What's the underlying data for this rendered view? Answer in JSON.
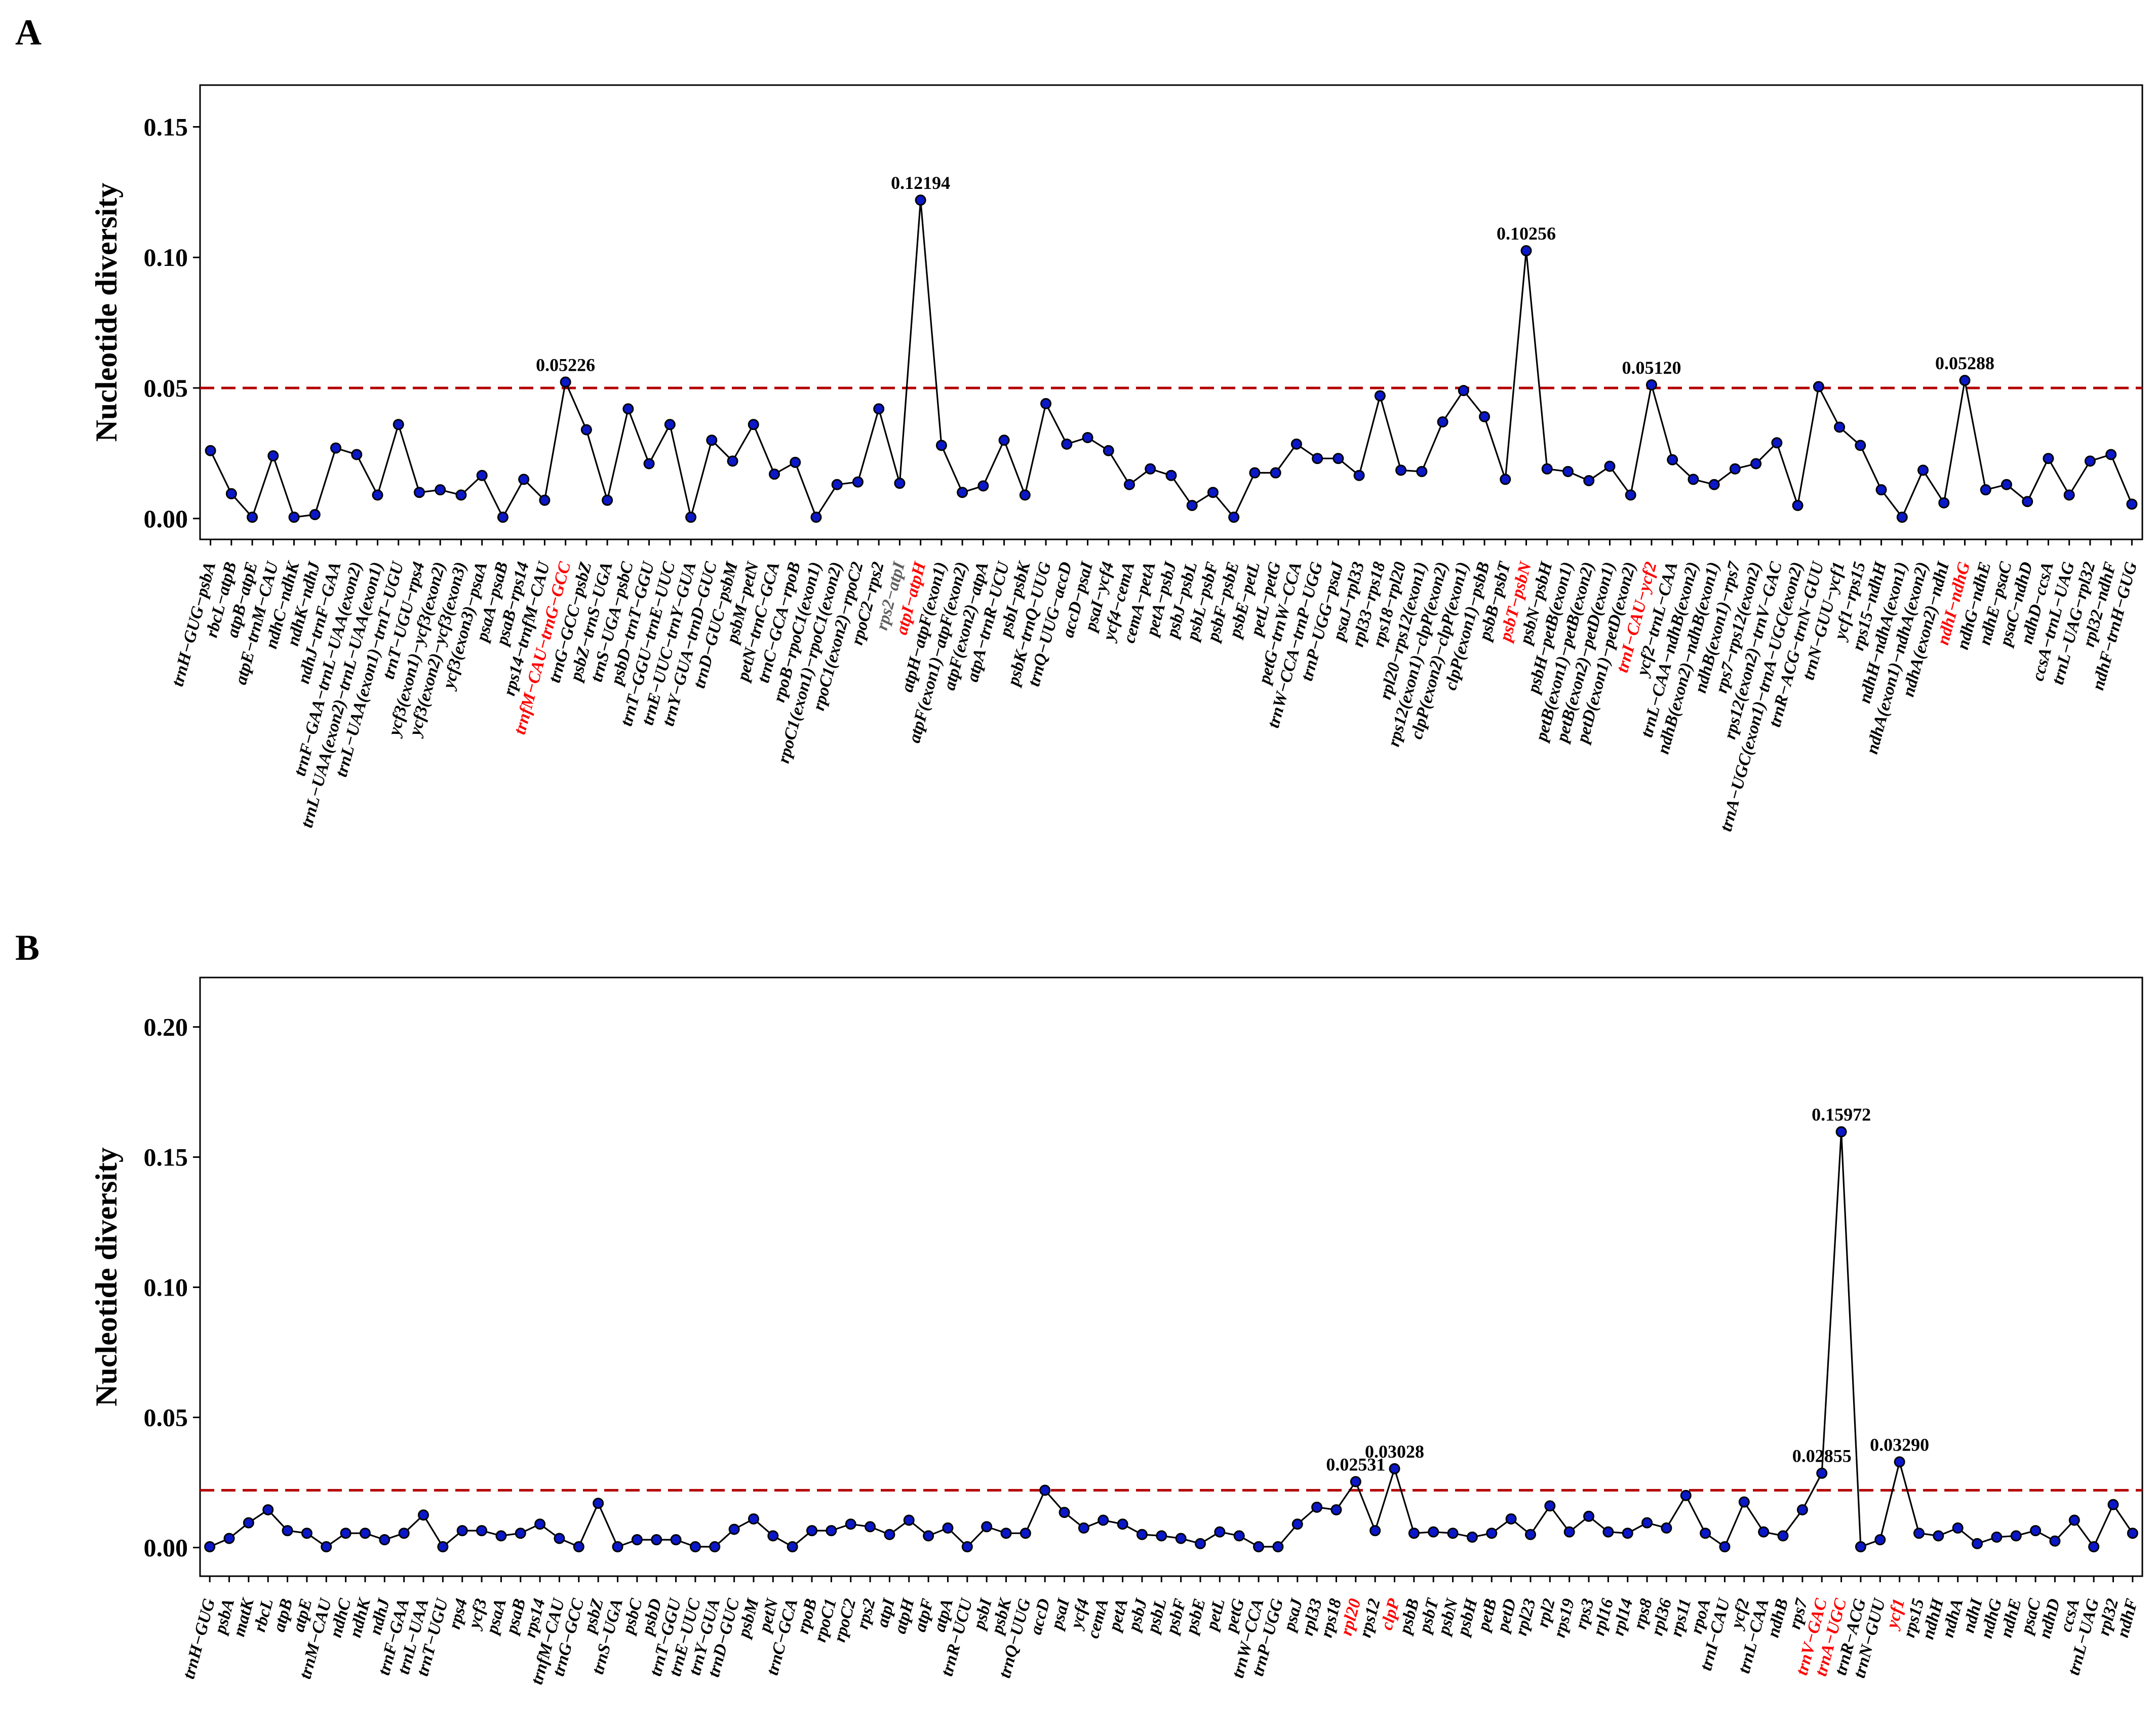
{
  "colors": {
    "point": "#0a18c8",
    "threshold": "#b40000",
    "highlight_label": "#ff0000",
    "label": "#000000"
  },
  "chart_data": [
    {
      "panel": "A",
      "type": "line",
      "ylabel": "Nucleotide diversity",
      "ylim": [
        -0.008,
        0.166
      ],
      "yticks": [
        0.0,
        0.05,
        0.1,
        0.15
      ],
      "ytick_labels": [
        "0.00",
        "0.05",
        "0.10",
        "0.15"
      ],
      "threshold": 0.05,
      "grid": false,
      "categories": [
        "trnH−GUG−psbA",
        "rbcL−atpB",
        "atpB−atpE",
        "atpE−trnM−CAU",
        "ndhC−ndhK",
        "ndhK−ndhJ",
        "ndhJ−trnF−GAA",
        "trnF−GAA−trnL−UAA(exon2)",
        "trnL−UAA(exon2)−trnL−UAA(exon1)",
        "trnL−UAA(exon1)−trnT−UGU",
        "trnT−UGU−rps4",
        "ycf3(exon1)−ycf3(exon2)",
        "ycf3(exon2)−ycf3(exon3)",
        "ycf3(exon3)−psaA",
        "psaA−psaB",
        "psaB−rps14",
        "rps14−trnfM−CAU",
        "trnfM−CAU−trnG−GCC",
        "trnG−GCC−psbZ",
        "psbZ−trnS−UGA",
        "trnS−UGA−psbC",
        "psbD−trnT−GGU",
        "trnT−GGU−trnE−UUC",
        "trnE−UUC−trnY−GUA",
        "trnY−GUA−trnD−GUC",
        "trnD−GUC−psbM",
        "psbM−petN",
        "petN−trnC−GCA",
        "trnC−GCA−rpoB",
        "rpoB−rpoC1(exon1)",
        "rpoC1(exon1)−rpoC1(exon2)",
        "rpoC1(exon2)−rpoC2",
        "rpoC2−rps2",
        "rps2−atpI",
        "atpI−atpH",
        "atpH−atpF(exon1)",
        "atpF(exon1)−atpF(exon2)",
        "atpF(exon2)−atpA",
        "atpA−trnR−UCU",
        "psbI−psbK",
        "psbK−trnQ−UUG",
        "trnQ−UUG−accD",
        "accD−psaI",
        "psaI−ycf4",
        "ycf4−cemA",
        "cemA−petA",
        "petA−psbJ",
        "psbJ−psbL",
        "psbL−psbF",
        "psbF−psbE",
        "psbE−petL",
        "petL−petG",
        "petG−trnW−CCA",
        "trnW−CCA−trnP−UGG",
        "trnP−UGG−psaJ",
        "psaJ−rpl33",
        "rpl33−rps18",
        "rps18−rpl20",
        "rpl20−rps12(exon1)",
        "rps12(exon1)−clpP(exon2)",
        "clpP(exon2)−clpP(exon1)",
        "clpP(exon1)−psbB",
        "psbB−psbT",
        "psbT−psbN",
        "psbN−psbH",
        "psbH−petB(exon1)",
        "petB(exon1)−petB(exon2)",
        "petB(exon2)−petD(exon1)",
        "petD(exon1)−petD(exon2)",
        "trnI−CAU−ycf2",
        "ycf2−trnL−CAA",
        "trnL−CAA−ndhB(exon2)",
        "ndhB(exon2)−ndhB(exon1)",
        "ndhB(exon1)−rps7",
        "rps7−rps12(exon2)",
        "rps12(exon2)−trnV−GAC",
        "trnA−UGC(exon1)−trnA−UGC(exon2)",
        "trnR−ACG−trnN−GUU",
        "trnN−GUU−ycf1",
        "ycf1−rps15",
        "rps15−ndhH",
        "ndhH−ndhA(exon1)",
        "ndhA(exon1)−ndhA(exon2)",
        "ndhA(exon2)−ndhI",
        "ndhI−ndhG",
        "ndhG−ndhE",
        "ndhE−psaC",
        "psaC−ndhD",
        "ndhD−ccsA",
        "ccsA−trnL−UAG",
        "trnL−UAG−rpl32",
        "rpl32−ndhF",
        "ndhF−trnH−GUG"
      ],
      "values": [
        0.026,
        0.0095,
        0.0005,
        0.024,
        0.0005,
        0.0015,
        0.027,
        0.0245,
        0.009,
        0.036,
        0.01,
        0.011,
        0.009,
        0.0165,
        0.0005,
        0.015,
        0.007,
        0.05226,
        0.034,
        0.007,
        0.042,
        0.021,
        0.036,
        0.0005,
        0.03,
        0.022,
        0.036,
        0.017,
        0.0215,
        0.0005,
        0.013,
        0.014,
        0.042,
        0.0135,
        0.12194,
        0.028,
        0.01,
        0.0125,
        0.03,
        0.009,
        0.044,
        0.0285,
        0.031,
        0.026,
        0.013,
        0.019,
        0.0165,
        0.005,
        0.01,
        0.0005,
        0.0175,
        0.0175,
        0.0285,
        0.023,
        0.023,
        0.0165,
        0.047,
        0.0185,
        0.018,
        0.037,
        0.049,
        0.039,
        0.015,
        0.10256,
        0.019,
        0.018,
        0.0145,
        0.02,
        0.009,
        0.0512,
        0.0225,
        0.015,
        0.013,
        0.019,
        0.021,
        0.029,
        0.005,
        0.0505,
        0.035,
        0.028,
        0.011,
        0.0005,
        0.0185,
        0.006,
        0.05288,
        0.011,
        0.013,
        0.0065,
        0.023,
        0.009,
        0.022,
        0.0245,
        0.0055
      ],
      "highlight_categories": [
        "trnfM−CAU−trnG−GCC",
        "atpI−atpH",
        "psbT−psbN",
        "trnI−CAU−ycf2",
        "ndhI−ndhG"
      ],
      "grey_categories": [
        "rps2−atpI"
      ],
      "annotations": [
        {
          "x": "trnfM−CAU−trnG−GCC",
          "y": 0.05226,
          "text": "0.05226"
        },
        {
          "x": "atpI−atpH",
          "y": 0.12194,
          "text": "0.12194"
        },
        {
          "x": "psbT−psbN",
          "y": 0.10256,
          "text": "0.10256"
        },
        {
          "x": "trnI−CAU−ycf2",
          "y": 0.0512,
          "text": "0.05120"
        },
        {
          "x": "ndhI−ndhG",
          "y": 0.05288,
          "text": "0.05288"
        }
      ]
    },
    {
      "panel": "B",
      "type": "line",
      "ylabel": "Nucleotide diversity",
      "ylim": [
        -0.011,
        0.219
      ],
      "yticks": [
        0.0,
        0.05,
        0.1,
        0.15,
        0.2
      ],
      "ytick_labels": [
        "0.00",
        "0.05",
        "0.10",
        "0.15",
        "0.20"
      ],
      "threshold": 0.022,
      "grid": false,
      "categories": [
        "trnH−GUG",
        "psbA",
        "matK",
        "rbcL",
        "atpB",
        "atpE",
        "trnM−CAU",
        "ndhC",
        "ndhK",
        "ndhJ",
        "trnF−GAA",
        "trnL−UAA",
        "trnT−UGU",
        "rps4",
        "ycf3",
        "psaA",
        "psaB",
        "rps14",
        "trnfM−CAU",
        "trnG−GCC",
        "psbZ",
        "trnS−UGA",
        "psbC",
        "psbD",
        "trnT−GGU",
        "trnE−UUC",
        "trnY−GUA",
        "trnD−GUC",
        "psbM",
        "petN",
        "trnC−GCA",
        "rpoB",
        "rpoC1",
        "rpoC2",
        "rps2",
        "atpI",
        "atpH",
        "atpF",
        "atpA",
        "trnR−UCU",
        "psbI",
        "psbK",
        "trnQ−UUG",
        "accD",
        "psaI",
        "ycf4",
        "cemA",
        "petA",
        "psbJ",
        "psbL",
        "psbF",
        "psbE",
        "petL",
        "petG",
        "trnW−CCA",
        "trnP−UGG",
        "psaJ",
        "rpl33",
        "rps18",
        "rpl20",
        "rps12",
        "clpP",
        "psbB",
        "psbT",
        "psbN",
        "psbH",
        "petB",
        "petD",
        "rpl23",
        "rpl2",
        "rps19",
        "rps3",
        "rpl16",
        "rpl14",
        "rps8",
        "rpl36",
        "rps11",
        "rpoA",
        "trnI−CAU",
        "ycf2",
        "trnL−CAA",
        "ndhB",
        "rps7",
        "trnV−GAC",
        "trnA−UGC",
        "trnR−ACG",
        "trnN−GUU",
        "ycf1",
        "rps15",
        "ndhH",
        "ndhA",
        "ndhI",
        "ndhG",
        "ndhE",
        "psaC",
        "ndhD",
        "ccsA",
        "trnL−UAG",
        "rpl32",
        "ndhF"
      ],
      "values": [
        0.0003,
        0.0035,
        0.0095,
        0.0145,
        0.0065,
        0.0055,
        0.0003,
        0.0055,
        0.0055,
        0.003,
        0.0055,
        0.0125,
        0.0003,
        0.0065,
        0.0065,
        0.0045,
        0.0055,
        0.009,
        0.0035,
        0.0003,
        0.017,
        0.0003,
        0.003,
        0.003,
        0.003,
        0.0003,
        0.0003,
        0.007,
        0.011,
        0.0045,
        0.0003,
        0.0065,
        0.0065,
        0.009,
        0.008,
        0.005,
        0.0105,
        0.0045,
        0.0075,
        0.0003,
        0.008,
        0.0055,
        0.0055,
        0.022,
        0.0135,
        0.0075,
        0.0105,
        0.009,
        0.005,
        0.0045,
        0.0035,
        0.0015,
        0.006,
        0.0045,
        0.0003,
        0.0003,
        0.009,
        0.0155,
        0.0145,
        0.02531,
        0.0065,
        0.03028,
        0.0055,
        0.006,
        0.0055,
        0.004,
        0.0055,
        0.011,
        0.005,
        0.016,
        0.006,
        0.012,
        0.006,
        0.0055,
        0.0095,
        0.0075,
        0.02,
        0.0055,
        0.0003,
        0.0175,
        0.006,
        0.0045,
        0.0145,
        0.02855,
        0.15972,
        0.0003,
        0.003,
        0.0329,
        0.0055,
        0.0045,
        0.0075,
        0.0015,
        0.004,
        0.0045,
        0.0065,
        0.0025,
        0.0105,
        0.0003,
        0.0165,
        0.0055
      ],
      "highlight_categories": [
        "rpl20",
        "clpP",
        "trnV−GAC",
        "trnA−UGC",
        "ycf1"
      ],
      "annotations": [
        {
          "x": "rpl20",
          "y": 0.02531,
          "text": "0.02531"
        },
        {
          "x": "clpP",
          "y": 0.03028,
          "text": "0.03028"
        },
        {
          "x": "trnV−GAC",
          "y": 0.02855,
          "text": "0.02855"
        },
        {
          "x": "trnA−UGC",
          "y": 0.15972,
          "text": "0.15972"
        },
        {
          "x": "ycf1",
          "y": 0.0329,
          "text": "0.03290"
        }
      ]
    }
  ]
}
